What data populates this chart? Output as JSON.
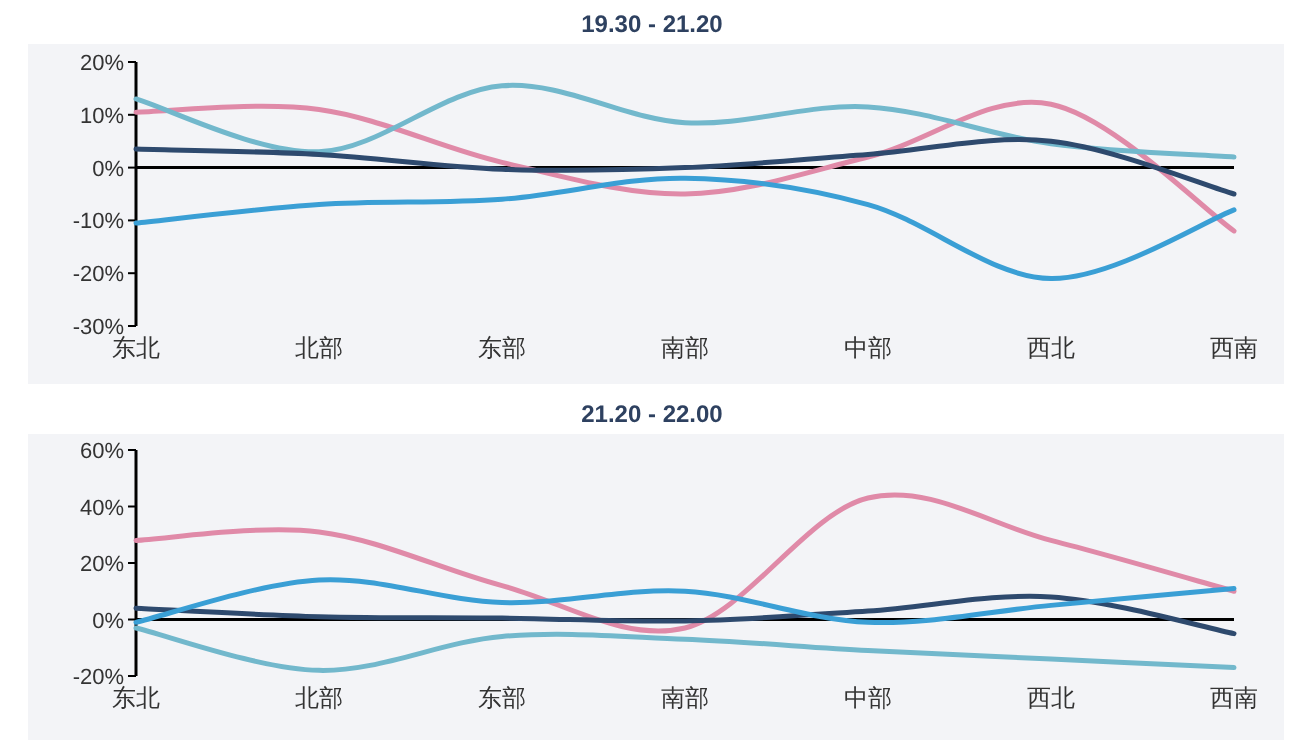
{
  "chart_data": [
    {
      "type": "line",
      "title": "19.30 - 21.20",
      "categories": [
        "东北",
        "北部",
        "东部",
        "南部",
        "中部",
        "西北",
        "西南"
      ],
      "series": [
        {
          "color": "#e08aa8",
          "values": [
            10.5,
            11,
            1,
            -5,
            2,
            12,
            -12
          ]
        },
        {
          "color": "#72b8cc",
          "values": [
            13,
            3,
            15.5,
            8.5,
            11.5,
            4.5,
            2
          ]
        },
        {
          "color": "#2e4a6e",
          "values": [
            3.5,
            2.5,
            -0.3,
            0,
            2.5,
            5,
            -5
          ]
        },
        {
          "color": "#3a9fd5",
          "values": [
            -10.5,
            -7,
            -6,
            -2,
            -7,
            -21,
            -8
          ]
        }
      ],
      "ylim": [
        -30,
        20
      ],
      "yticks": [
        {
          "value": -30,
          "label": "-30%"
        },
        {
          "value": -20,
          "label": "-20%"
        },
        {
          "value": -10,
          "label": "-10%"
        },
        {
          "value": 0,
          "label": "0%"
        },
        {
          "value": 10,
          "label": "10%"
        },
        {
          "value": 20,
          "label": "20%"
        }
      ],
      "ref_lines": [
        {
          "axis": "y",
          "value": 0,
          "color": "#000000"
        }
      ]
    },
    {
      "type": "line",
      "title": "21.20 - 22.00",
      "categories": [
        "东北",
        "北部",
        "东部",
        "南部",
        "中部",
        "西北",
        "西南"
      ],
      "series": [
        {
          "color": "#e08aa8",
          "values": [
            28,
            31,
            12,
            -3,
            43,
            28,
            10
          ]
        },
        {
          "color": "#72b8cc",
          "values": [
            -3,
            -18,
            -6,
            -7,
            -11,
            -14,
            -17
          ]
        },
        {
          "color": "#2e4a6e",
          "values": [
            4,
            1,
            0.5,
            -0.5,
            3,
            8,
            -5
          ]
        },
        {
          "color": "#3a9fd5",
          "values": [
            -1,
            14,
            6,
            10,
            -1,
            5,
            11
          ]
        }
      ],
      "ylim": [
        -20,
        60
      ],
      "yticks": [
        {
          "value": -20,
          "label": "-20%"
        },
        {
          "value": 0,
          "label": "0%"
        },
        {
          "value": 20,
          "label": "20%"
        },
        {
          "value": 40,
          "label": "40%"
        },
        {
          "value": 60,
          "label": "60%"
        }
      ],
      "ref_lines": [
        {
          "axis": "y",
          "value": 0,
          "color": "#000000"
        }
      ]
    }
  ]
}
